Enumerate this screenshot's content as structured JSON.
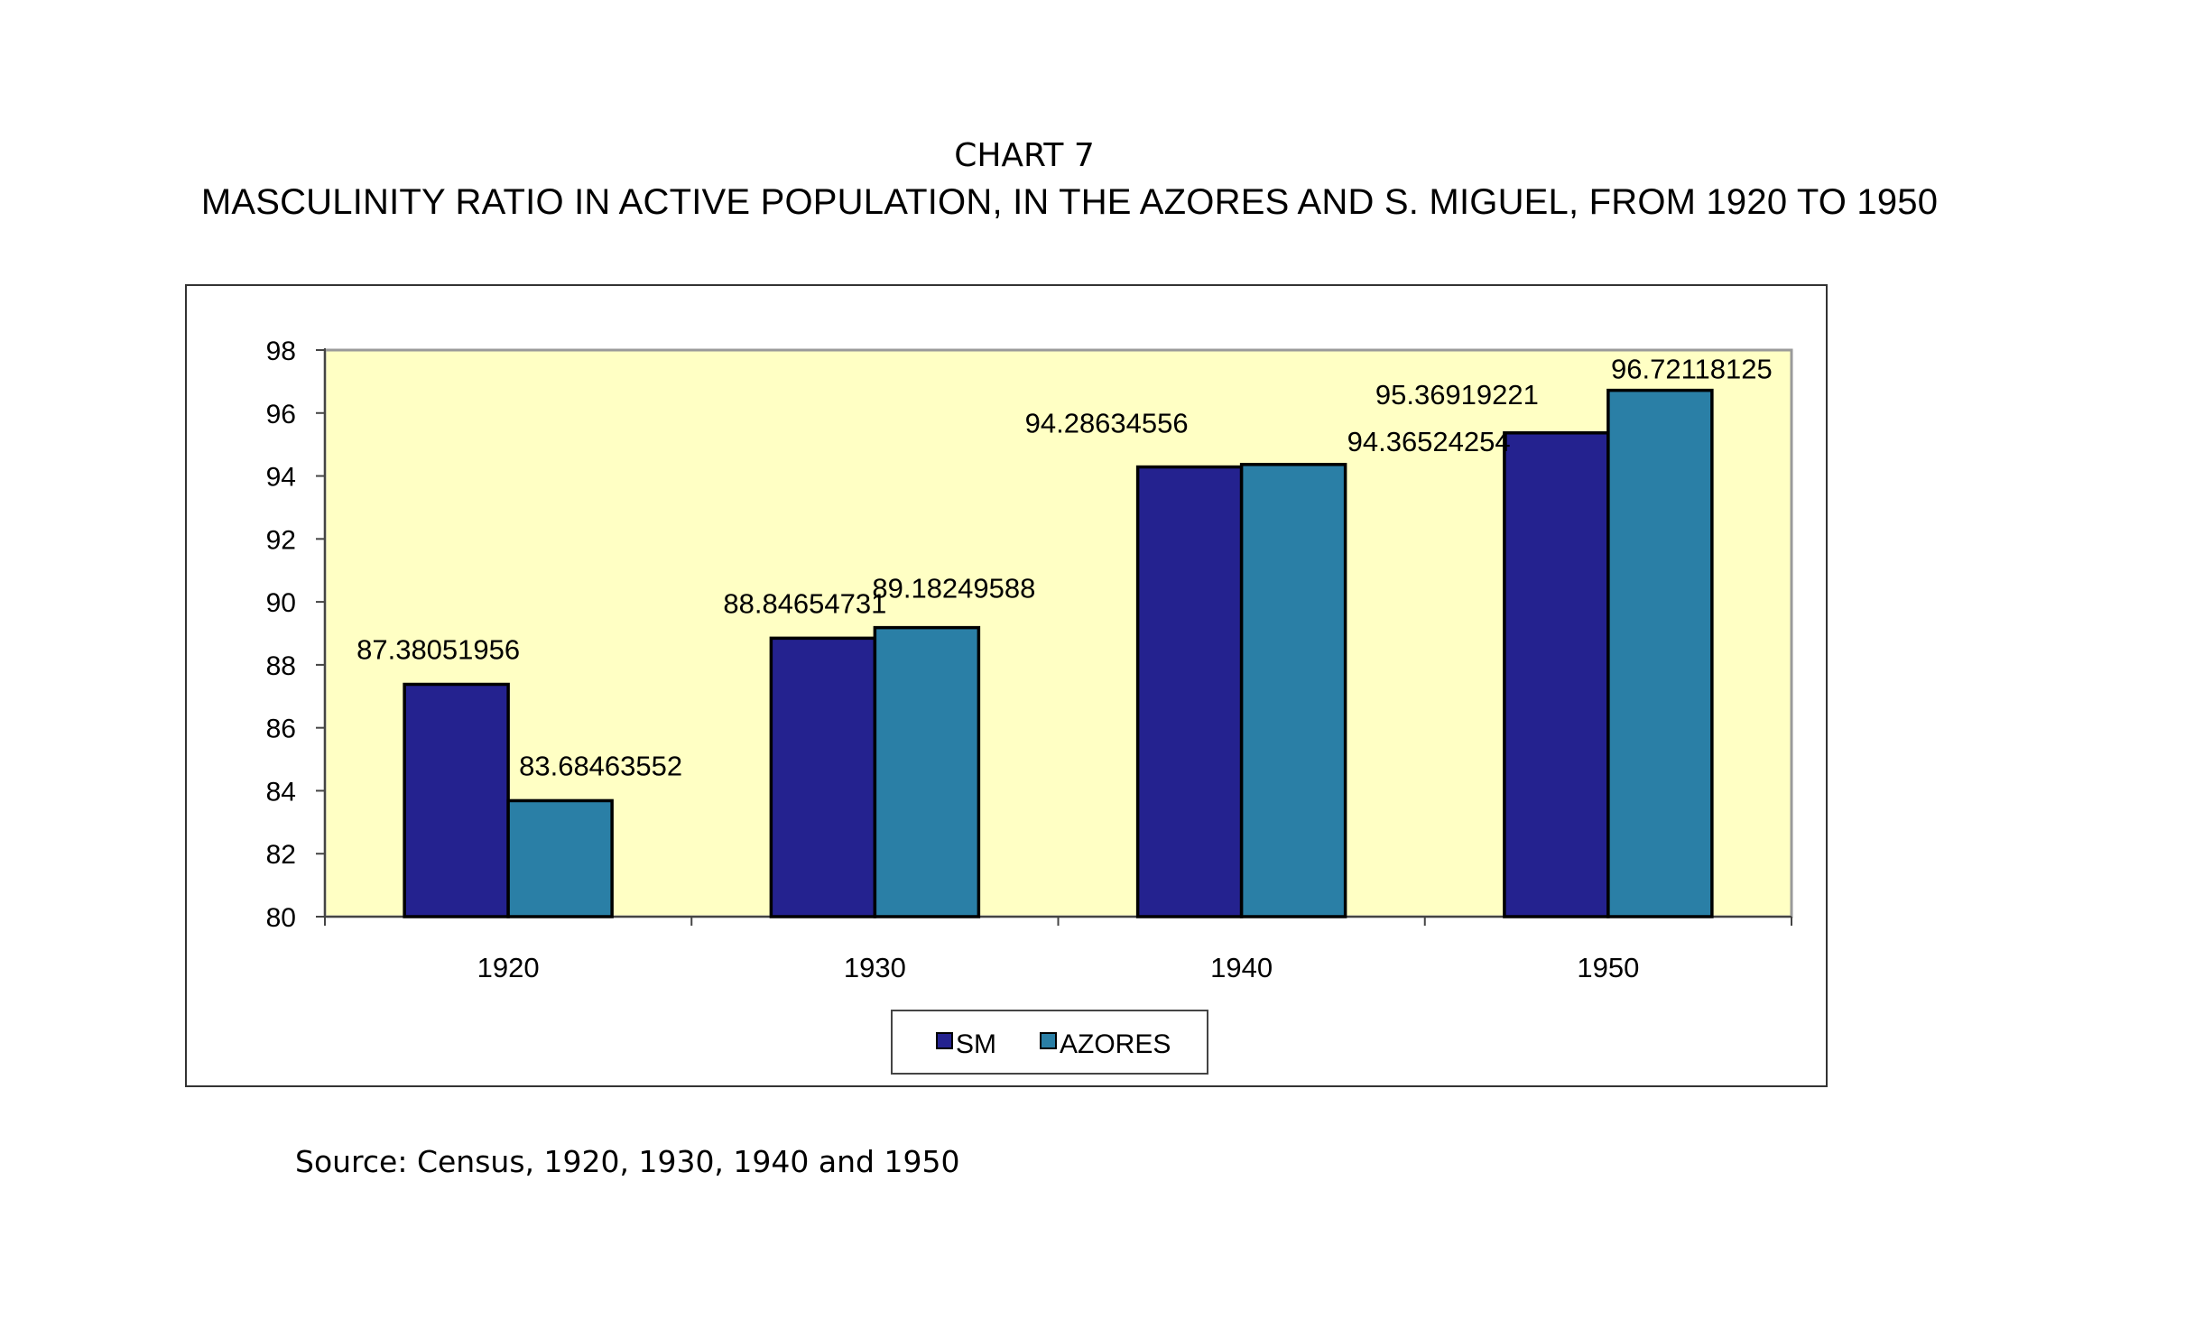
{
  "chart_number": "CHART 7",
  "title": "MASCULINITY RATIO IN ACTIVE POPULATION, IN THE AZORES AND S. MIGUEL, FROM 1920 TO 1950",
  "source": "Source: Census, 1920, 1930, 1940 and 1950",
  "colors": {
    "plot_bg": "#ffffc4",
    "sm": "#24228f",
    "azores": "#2a7fa6",
    "edge": "#000000"
  },
  "chart_data": {
    "type": "bar",
    "categories": [
      "1920",
      "1930",
      "1940",
      "1950"
    ],
    "series": [
      {
        "name": "SM",
        "values": [
          87.38051956,
          88.84654731,
          94.28634556,
          95.36919221
        ],
        "labels": [
          "87.38051956",
          "88.84654731",
          "94.28634556",
          "95.36919221"
        ]
      },
      {
        "name": "AZORES",
        "values": [
          83.68463552,
          89.18249588,
          94.36524254,
          96.72118125
        ],
        "labels": [
          "83.68463552",
          "89.18249588",
          "94.36524254",
          "96.72118125"
        ]
      }
    ],
    "ylim": [
      80,
      98
    ],
    "yticks": [
      "80",
      "82",
      "84",
      "86",
      "88",
      "90",
      "92",
      "94",
      "96",
      "98"
    ],
    "xlabel": "",
    "ylabel": "",
    "legend": "bottom-center",
    "grid": false
  }
}
